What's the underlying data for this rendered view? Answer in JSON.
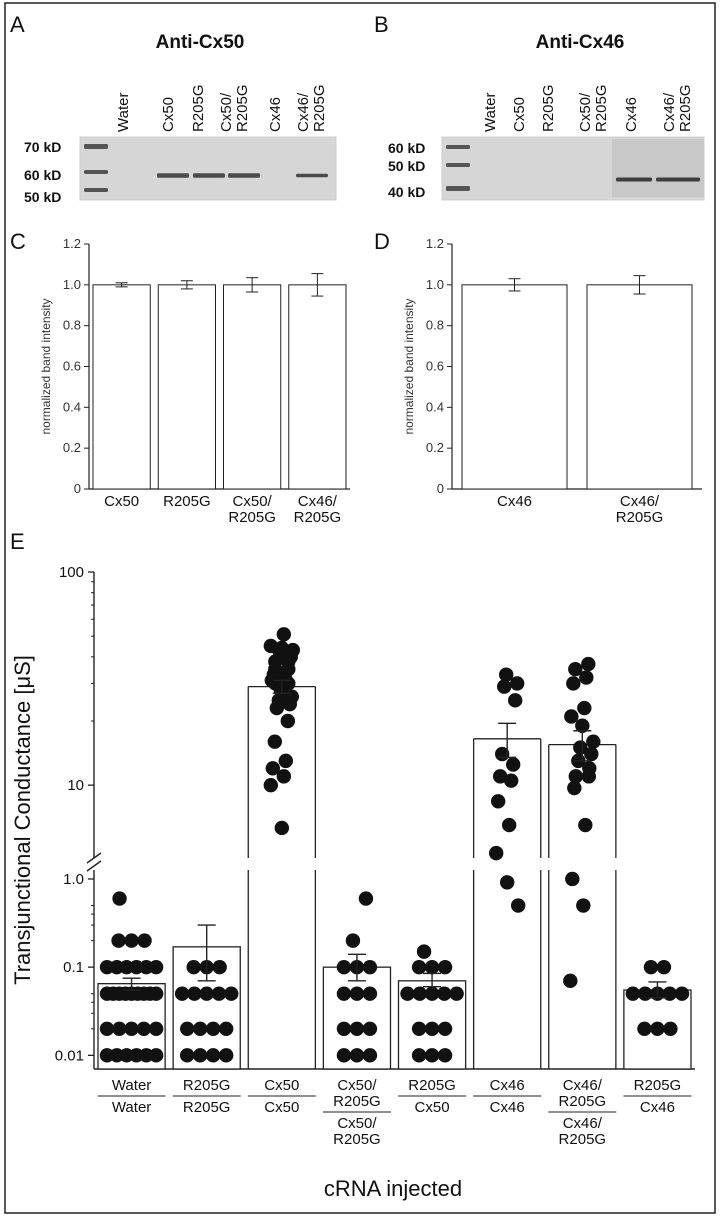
{
  "figure": {
    "panel_labels": [
      "A",
      "B",
      "C",
      "D",
      "E"
    ]
  },
  "blots": [
    {
      "panel": "A",
      "title": "Anti-Cx50",
      "lanes": [
        "Water",
        "Cx50",
        "R205G",
        "Cx50/\nR205G",
        "Cx46",
        "Cx46/\nR205G"
      ],
      "markers": [
        "70 kD",
        "60 kD",
        "50 kD"
      ]
    },
    {
      "panel": "B",
      "title": "Anti-Cx46",
      "lanes": [
        "Water",
        "Cx50",
        "R205G",
        "Cx50/\nR205G",
        "Cx46",
        "Cx46/\nR205G"
      ],
      "markers": [
        "60 kD",
        "50 kD",
        "40 kD"
      ]
    }
  ],
  "chart_data": [
    {
      "panel": "C",
      "type": "bar",
      "categories": [
        "Cx50",
        "R205G",
        "Cx50/\nR205G",
        "Cx46/\nR205G"
      ],
      "values": [
        1.0,
        1.0,
        1.0,
        1.0
      ],
      "errors": [
        0.01,
        0.02,
        0.035,
        0.055
      ],
      "ylabel": "normalized band intensity",
      "ylim": [
        0,
        1.2
      ],
      "yticks": [
        "0",
        "0.2",
        "0.4",
        "0.6",
        "0.8",
        "1.0",
        "1.2"
      ],
      "grid": false
    },
    {
      "panel": "D",
      "type": "bar",
      "categories": [
        "Cx46",
        "Cx46/\nR205G"
      ],
      "values": [
        1.0,
        1.0
      ],
      "errors": [
        0.03,
        0.045
      ],
      "ylabel": "normalized band intensity",
      "ylim": [
        0,
        1.2
      ],
      "yticks": [
        "0",
        "0.2",
        "0.4",
        "0.6",
        "0.8",
        "1.0",
        "1.2"
      ],
      "grid": false
    },
    {
      "panel": "E",
      "type": "bar",
      "scale": "log, broken axis",
      "ylabel": "Transjunctional Conductance [μS]",
      "xlabel": "cRNA injected",
      "yticks_upper": [
        "10",
        "100"
      ],
      "yticks_lower": [
        "0.01",
        "0.1",
        "1.0"
      ],
      "categories": [
        {
          "top": "Water",
          "bottom": "Water"
        },
        {
          "top": "R205G",
          "bottom": "R205G"
        },
        {
          "top": "Cx50",
          "bottom": "Cx50"
        },
        {
          "top": "Cx50/\nR205G",
          "bottom": "Cx50/\nR205G"
        },
        {
          "top": "R205G",
          "bottom": "Cx50"
        },
        {
          "top": "Cx46",
          "bottom": "Cx46"
        },
        {
          "top": "Cx46/\nR205G",
          "bottom": "Cx46/\nR205G"
        },
        {
          "top": "R205G",
          "bottom": "Cx46"
        }
      ],
      "means": [
        0.065,
        0.17,
        29,
        0.1,
        0.07,
        16.5,
        15.5,
        0.055
      ],
      "sem_upper": [
        0.075,
        0.3,
        31,
        0.14,
        0.085,
        19.5,
        18,
        0.068
      ],
      "sem_lower": [
        0.055,
        0.07,
        27,
        0.07,
        0.06,
        13.5,
        13,
        0.045
      ],
      "points": [
        [
          0.6,
          0.2,
          0.2,
          0.2,
          0.1,
          0.1,
          0.1,
          0.1,
          0.1,
          0.1,
          0.05,
          0.05,
          0.05,
          0.05,
          0.05,
          0.05,
          0.05,
          0.05,
          0.05,
          0.02,
          0.02,
          0.02,
          0.02,
          0.02,
          0.01,
          0.01,
          0.01,
          0.01,
          0.01,
          0.01
        ],
        [
          0.1,
          0.1,
          0.1,
          0.05,
          0.05,
          0.05,
          0.05,
          0.05,
          0.02,
          0.02,
          0.02,
          0.02,
          0.01,
          0.01,
          0.01,
          0.01
        ],
        [
          51,
          45,
          44,
          43,
          42,
          40,
          38,
          38,
          35,
          35,
          33,
          32,
          31,
          30,
          30,
          28,
          26,
          25,
          24,
          23,
          20,
          16,
          13,
          12,
          11,
          10,
          6.3
        ],
        [
          0.6,
          0.2,
          0.1,
          0.1,
          0.1,
          0.05,
          0.05,
          0.05,
          0.02,
          0.02,
          0.02,
          0.01,
          0.01,
          0.01
        ],
        [
          0.15,
          0.1,
          0.1,
          0.1,
          0.05,
          0.05,
          0.05,
          0.05,
          0.05,
          0.02,
          0.02,
          0.02,
          0.01,
          0.01,
          0.01
        ],
        [
          33,
          30,
          29,
          25,
          14,
          12.5,
          11,
          10.5,
          8.4,
          6.5,
          4.8,
          3.5,
          0.5
        ],
        [
          37,
          35,
          32,
          30,
          23,
          21,
          19,
          16,
          15,
          14,
          13,
          12,
          11,
          11,
          9.7,
          6.5,
          1.0,
          0.5,
          0.07
        ],
        [
          0.1,
          0.1,
          0.05,
          0.05,
          0.05,
          0.05,
          0.05,
          0.02,
          0.02,
          0.02
        ]
      ]
    }
  ]
}
